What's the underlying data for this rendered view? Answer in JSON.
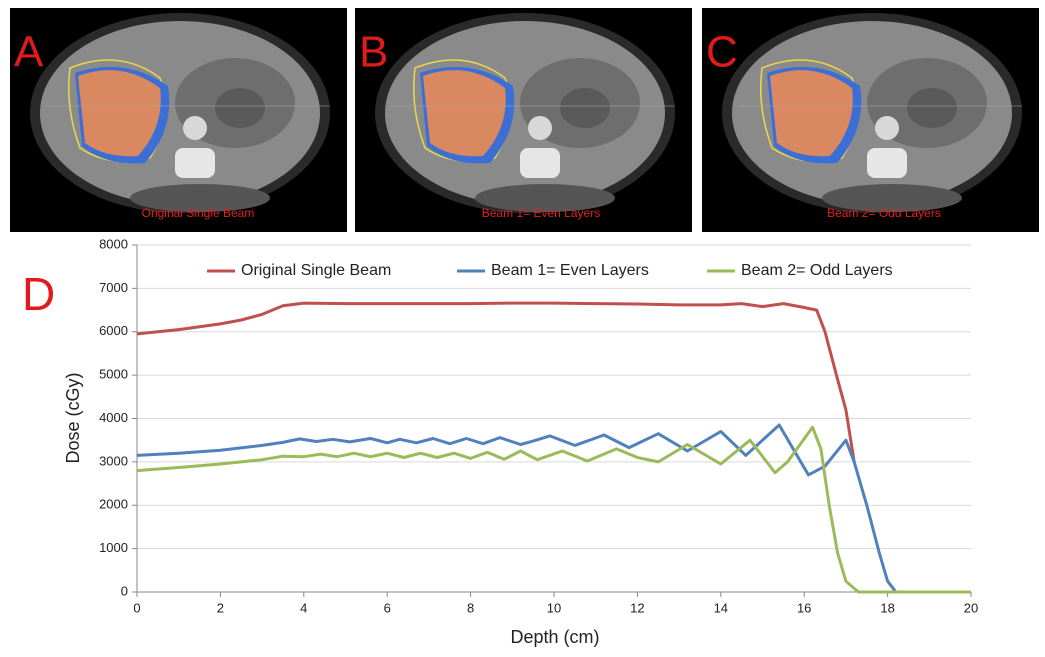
{
  "panels": [
    {
      "letter": "A",
      "caption": "Original Single Beam"
    },
    {
      "letter": "B",
      "caption": "Beam 1= Even Layers"
    },
    {
      "letter": "C",
      "caption": "Beam 2= Odd Layers"
    }
  ],
  "chart_data": {
    "type": "line",
    "letter": "D",
    "xlabel": "Depth (cm)",
    "ylabel": "Dose (cGy)",
    "xlim": [
      0,
      20
    ],
    "xticks": [
      0,
      2,
      4,
      6,
      8,
      10,
      12,
      14,
      16,
      18,
      20
    ],
    "ylim": [
      0,
      8000
    ],
    "yticks": [
      0,
      1000,
      2000,
      3000,
      4000,
      5000,
      6000,
      7000,
      8000
    ],
    "grid": true,
    "legend": "top",
    "series": [
      {
        "name": "Original Single Beam",
        "color": "#c0504d",
        "x": [
          0,
          1,
          2,
          2.5,
          3,
          3.5,
          4,
          5,
          6,
          7,
          8,
          9,
          10,
          11,
          12,
          13,
          14,
          14.5,
          15,
          15.5,
          16,
          16.3,
          16.5,
          16.8,
          17,
          17.2
        ],
        "values": [
          5950,
          6050,
          6180,
          6270,
          6400,
          6600,
          6660,
          6650,
          6650,
          6650,
          6650,
          6660,
          6660,
          6650,
          6640,
          6620,
          6620,
          6650,
          6580,
          6650,
          6560,
          6500,
          6000,
          4900,
          4200,
          3000
        ]
      },
      {
        "name": "Beam 1= Even Layers",
        "color": "#4f81bd",
        "x": [
          0,
          1,
          2,
          3,
          3.5,
          3.9,
          4.3,
          4.7,
          5.1,
          5.6,
          6.0,
          6.3,
          6.7,
          7.1,
          7.5,
          7.9,
          8.3,
          8.7,
          9.2,
          9.5,
          9.9,
          10.5,
          11.2,
          11.8,
          12.5,
          13.2,
          14.0,
          14.6,
          15.4,
          16.1,
          16.5,
          17.0,
          17.2,
          17.5,
          17.8,
          18.0,
          18.2,
          20
        ],
        "values": [
          3150,
          3200,
          3270,
          3380,
          3450,
          3530,
          3470,
          3520,
          3460,
          3540,
          3440,
          3520,
          3440,
          3540,
          3420,
          3540,
          3420,
          3560,
          3400,
          3480,
          3600,
          3380,
          3620,
          3330,
          3650,
          3250,
          3700,
          3150,
          3850,
          2700,
          2900,
          3500,
          3000,
          2000,
          900,
          250,
          0,
          0
        ]
      },
      {
        "name": "Beam 2= Odd Layers",
        "color": "#9bbb59",
        "x": [
          0,
          1,
          2,
          3,
          3.5,
          4,
          4.4,
          4.8,
          5.2,
          5.6,
          6.0,
          6.4,
          6.8,
          7.2,
          7.6,
          8.0,
          8.4,
          8.8,
          9.2,
          9.6,
          10.2,
          10.8,
          11.5,
          12.0,
          12.5,
          13.2,
          14.0,
          14.7,
          15.3,
          15.6,
          16.2,
          16.4,
          16.6,
          16.8,
          17.0,
          17.3,
          20
        ],
        "values": [
          2800,
          2870,
          2950,
          3050,
          3130,
          3120,
          3180,
          3120,
          3200,
          3120,
          3200,
          3100,
          3200,
          3100,
          3200,
          3080,
          3220,
          3060,
          3250,
          3050,
          3250,
          3020,
          3300,
          3100,
          3000,
          3400,
          2950,
          3500,
          2750,
          3000,
          3800,
          3300,
          2000,
          900,
          250,
          0,
          0
        ]
      }
    ]
  }
}
